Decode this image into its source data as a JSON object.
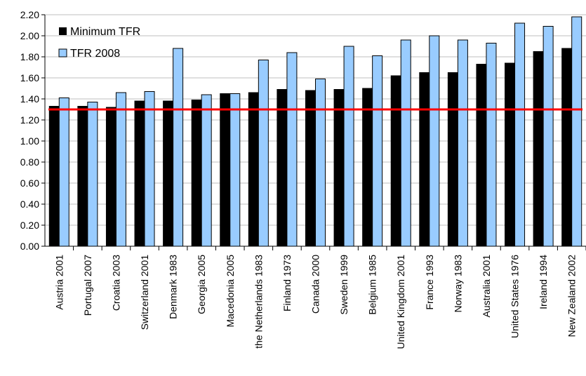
{
  "chart_data": {
    "type": "bar",
    "categories": [
      "Austria 2001",
      "Portugal 2007",
      "Croatia 2003",
      "Switzerland 2001",
      "Denmark 1983",
      "Georgia 2005",
      "Macedonia 2005",
      "the Netherlands 1983",
      "Finland 1973",
      "Canada 2000",
      "Sweden 1999",
      "Belgium 1985",
      "United Kingdom 2001",
      "France 1993",
      "Norway 1983",
      "Australia 2001",
      "United States 1976",
      "Ireland 1994",
      "New Zealand 2002"
    ],
    "series": [
      {
        "name": "Minimum TFR",
        "color": "#000000",
        "values": [
          1.33,
          1.33,
          1.32,
          1.38,
          1.38,
          1.39,
          1.45,
          1.46,
          1.49,
          1.48,
          1.49,
          1.5,
          1.62,
          1.65,
          1.65,
          1.73,
          1.74,
          1.85,
          1.88
        ]
      },
      {
        "name": "TFR 2008",
        "color": "#99CCFF",
        "values": [
          1.41,
          1.37,
          1.46,
          1.47,
          1.88,
          1.44,
          1.45,
          1.77,
          1.84,
          1.59,
          1.9,
          1.81,
          1.96,
          2.0,
          1.96,
          1.93,
          2.12,
          2.09,
          2.18
        ]
      }
    ],
    "reference_line": {
      "value": 1.3,
      "color": "#FF0000"
    },
    "ylim": [
      0,
      2.2
    ],
    "yticks": [
      "0.00",
      "0.20",
      "0.40",
      "0.60",
      "0.80",
      "1.00",
      "1.20",
      "1.40",
      "1.60",
      "1.80",
      "2.00",
      "2.20"
    ],
    "grid": true,
    "legend_position": "top-left",
    "title": "",
    "xlabel": "",
    "ylabel": ""
  }
}
